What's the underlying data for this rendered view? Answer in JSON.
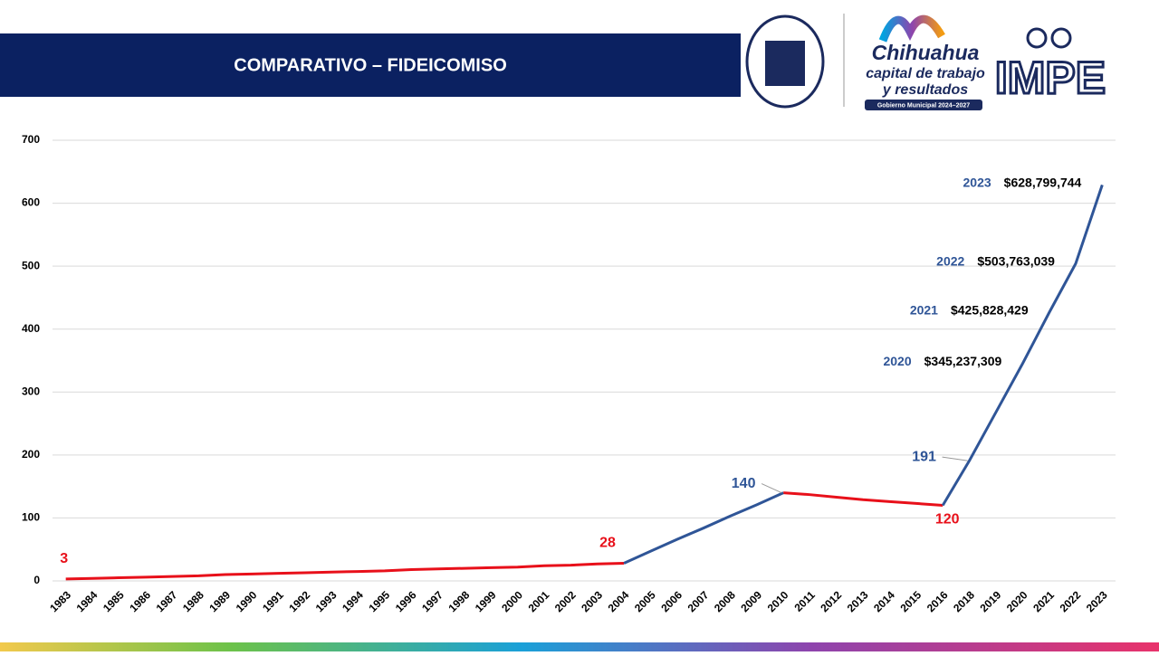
{
  "header": {
    "title": "COMPARATIVO – FIDEICOMISO",
    "logos": {
      "city_name": "Chihuahua",
      "slogan_1": "capital de trabajo",
      "slogan_2": "y resultados",
      "government": "Gobierno Municipal 2024–2027",
      "institute": "IMPE"
    }
  },
  "chart_data": {
    "type": "line",
    "categories": [
      "1983",
      "1984",
      "1985",
      "1986",
      "1987",
      "1988",
      "1989",
      "1990",
      "1991",
      "1992",
      "1993",
      "1994",
      "1995",
      "1996",
      "1997",
      "1998",
      "1999",
      "2000",
      "2001",
      "2002",
      "2003",
      "2004",
      "2005",
      "2006",
      "2007",
      "2008",
      "2009",
      "2010",
      "2011",
      "2012",
      "2013",
      "2014",
      "2015",
      "2016",
      "2018",
      "2019",
      "2020",
      "2021",
      "2022",
      "2023"
    ],
    "series": [
      {
        "color": "#e8101a",
        "values": [
          3,
          4,
          5,
          6,
          7,
          8,
          10,
          11,
          12,
          13,
          14,
          15,
          16,
          18,
          19,
          20,
          21,
          22,
          24,
          25,
          27,
          28,
          null,
          null,
          null,
          null,
          null,
          140,
          137,
          133,
          129,
          126,
          123,
          120,
          null,
          null,
          null,
          null,
          null,
          null
        ],
        "value_labels": [
          "3",
          null,
          null,
          null,
          null,
          null,
          null,
          null,
          null,
          null,
          null,
          null,
          null,
          null,
          null,
          null,
          null,
          null,
          null,
          null,
          null,
          "28",
          null,
          null,
          null,
          null,
          null,
          null,
          null,
          null,
          null,
          null,
          null,
          "120",
          null,
          null,
          null,
          null,
          null,
          null
        ]
      },
      {
        "color": "#2f5597",
        "values": [
          null,
          null,
          null,
          null,
          null,
          null,
          null,
          null,
          null,
          null,
          null,
          null,
          null,
          null,
          null,
          null,
          null,
          null,
          null,
          null,
          null,
          28,
          47,
          66,
          84,
          103,
          121,
          140,
          null,
          null,
          null,
          null,
          null,
          120,
          191,
          268,
          345,
          426,
          504,
          629
        ],
        "value_labels": [
          null,
          null,
          null,
          null,
          null,
          null,
          null,
          null,
          null,
          null,
          null,
          null,
          null,
          null,
          null,
          null,
          null,
          null,
          null,
          null,
          null,
          null,
          null,
          null,
          null,
          null,
          null,
          "140",
          null,
          null,
          null,
          null,
          null,
          null,
          "191",
          null,
          null,
          null,
          null,
          null
        ]
      }
    ],
    "annotations": [
      {
        "year": "2020",
        "amount": "$345,237,309"
      },
      {
        "year": "2021",
        "amount": "$425,828,429"
      },
      {
        "year": "2022",
        "amount": "$503,763,039"
      },
      {
        "year": "2023",
        "amount": "$628,799,744"
      }
    ],
    "ylim": [
      0,
      700
    ],
    "yticks": [
      0,
      100,
      200,
      300,
      400,
      500,
      600,
      700
    ],
    "grid": true
  }
}
